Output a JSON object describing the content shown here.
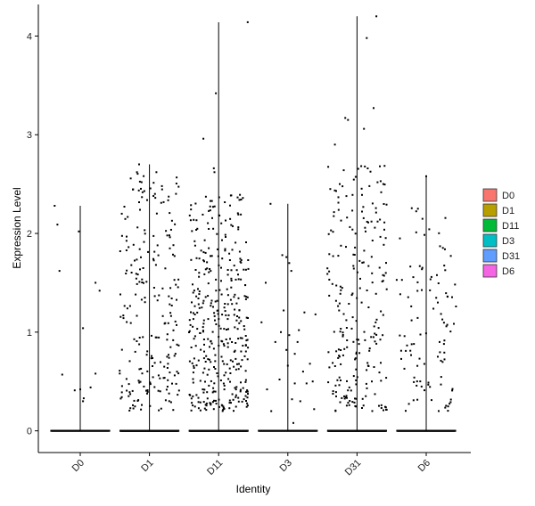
{
  "chart_data": {
    "type": "violin-jitter",
    "title": "",
    "xlabel": "Identity",
    "ylabel": "Expression Level",
    "categories": [
      "D0",
      "D1",
      "D11",
      "D3",
      "D31",
      "D6"
    ],
    "colors": [
      "#F8766D",
      "#B79F00",
      "#00BA38",
      "#00BFC4",
      "#619CFF",
      "#F564E3"
    ],
    "ylim": [
      -0.22,
      4.32
    ],
    "yticks": [
      0,
      1,
      2,
      3,
      4
    ],
    "ytick_labels": [
      "0",
      "1",
      "2",
      "3",
      "4"
    ],
    "grid": false,
    "legend": {
      "position": "right",
      "entries": [
        "D0",
        "D1",
        "D11",
        "D3",
        "D31",
        "D6"
      ]
    },
    "series": [
      {
        "name": "D0",
        "max": 2.28,
        "zeros": 150,
        "points": [
          [
            -0.37,
            2.28
          ],
          [
            -0.33,
            2.09
          ],
          [
            -0.3,
            1.62
          ],
          [
            -0.26,
            0.57
          ],
          [
            -0.08,
            0.41
          ],
          [
            0,
            0.42
          ],
          [
            0.04,
            0.3
          ],
          [
            0.04,
            1.04
          ],
          [
            -0.02,
            2.02
          ],
          [
            0.15,
            0.44
          ],
          [
            0.22,
            0.58
          ],
          [
            0.22,
            1.5
          ],
          [
            0.28,
            1.42
          ],
          [
            0.05,
            0.33
          ]
        ]
      },
      {
        "name": "D1",
        "max": 2.7,
        "zeros": 300,
        "pts": 220,
        "seed": 11,
        "dmax": 2.7,
        "extra": [
          [
            -0.4,
            2.2
          ],
          [
            -0.18,
            2.62
          ],
          [
            -0.15,
            2.7
          ],
          [
            0.1,
            2.62
          ],
          [
            0.08,
            2.4
          ]
        ]
      },
      {
        "name": "D11",
        "max": 4.14,
        "zeros": 300,
        "pts": 380,
        "seed": 23,
        "dmax": 2.4,
        "extra": [
          [
            0.42,
            4.14
          ],
          [
            -0.04,
            3.42
          ],
          [
            -0.22,
            2.96
          ],
          [
            -0.07,
            2.66
          ],
          [
            -0.06,
            2.62
          ],
          [
            0.3,
            2.34
          ],
          [
            0.35,
            2.36
          ]
        ]
      },
      {
        "name": "D3",
        "max": 2.3,
        "zeros": 150,
        "points": [
          [
            -0.25,
            2.3
          ],
          [
            -0.32,
            1.5
          ],
          [
            -0.38,
            1.1
          ],
          [
            -0.3,
            0.42
          ],
          [
            -0.24,
            0.2
          ],
          [
            -0.08,
            1.78
          ],
          [
            -0.02,
            1.76
          ],
          [
            0.05,
            1.62
          ],
          [
            0.02,
            1.7
          ],
          [
            -0.06,
            1.22
          ],
          [
            -0.02,
            0.82
          ],
          [
            0.0,
            0.66
          ],
          [
            0.06,
            0.32
          ],
          [
            0.02,
            0.97
          ],
          [
            0.1,
            0.78
          ],
          [
            0.1,
            0.48
          ],
          [
            0.14,
            0.9
          ],
          [
            0.16,
            1.02
          ],
          [
            0.18,
            0.3
          ],
          [
            0.22,
            0.6
          ],
          [
            0.24,
            1.2
          ],
          [
            0.27,
            0.48
          ],
          [
            0.32,
            0.68
          ],
          [
            0.36,
            0.5
          ],
          [
            0.38,
            0.22
          ],
          [
            0.4,
            1.18
          ],
          [
            -0.12,
            0.52
          ],
          [
            -0.18,
            0.9
          ],
          [
            0.08,
            0.08
          ],
          [
            -0.1,
            1.0
          ]
        ]
      },
      {
        "name": "D31",
        "max": 4.2,
        "zeros": 300,
        "pts": 230,
        "seed": 37,
        "dmax": 2.7,
        "extra": [
          [
            0.28,
            4.2
          ],
          [
            0.14,
            3.98
          ],
          [
            -0.13,
            3.15
          ],
          [
            -0.17,
            3.17
          ],
          [
            0.1,
            3.06
          ],
          [
            0.24,
            3.27
          ],
          [
            -0.32,
            2.9
          ],
          [
            0.33,
            2.68
          ],
          [
            0.38,
            2.5
          ]
        ]
      },
      {
        "name": "D6",
        "max": 2.58,
        "zeros": 200,
        "pts": 100,
        "seed": 53,
        "dmax": 2.3,
        "extra": [
          [
            -0.12,
            2.25
          ],
          [
            0.0,
            2.58
          ],
          [
            -0.38,
            1.95
          ],
          [
            0.27,
            1.84
          ],
          [
            0.2,
            1.87
          ]
        ]
      }
    ]
  }
}
